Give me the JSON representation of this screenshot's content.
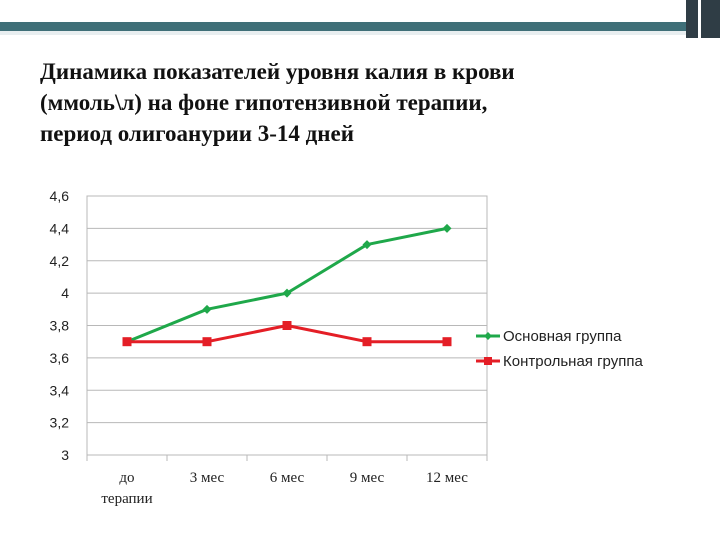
{
  "title_lines": [
    "Динамика показателей уровня калия в крови",
    "(ммоль\\л)  на фоне гипотензивной терапии,",
    "период олигоанурии 3-14 дней"
  ],
  "chart_data": {
    "type": "line",
    "title": "",
    "xlabel": "",
    "ylabel": "",
    "ylim": [
      3,
      4.6
    ],
    "yticks": [
      3,
      3.2,
      3.4,
      3.6,
      3.8,
      4,
      4.2,
      4.4,
      4.6
    ],
    "ytick_labels": [
      "3",
      "3,2",
      "3,4",
      "3,6",
      "3,8",
      "4",
      "4,2",
      "4,4",
      "4,6"
    ],
    "categories": [
      [
        "до",
        "терапии"
      ],
      [
        "3 мес"
      ],
      [
        "6 мес"
      ],
      [
        "9 мес"
      ],
      [
        "12 мес"
      ]
    ],
    "grid": true,
    "legend_position": "right",
    "series": [
      {
        "name": "Основная группа",
        "color": "#1fa84a",
        "marker": "diamond",
        "values": [
          3.7,
          3.9,
          4.0,
          4.3,
          4.4
        ]
      },
      {
        "name": "Контрольная группа",
        "color": "#e41e26",
        "marker": "square",
        "values": [
          3.7,
          3.7,
          3.8,
          3.7,
          3.7
        ]
      }
    ]
  }
}
